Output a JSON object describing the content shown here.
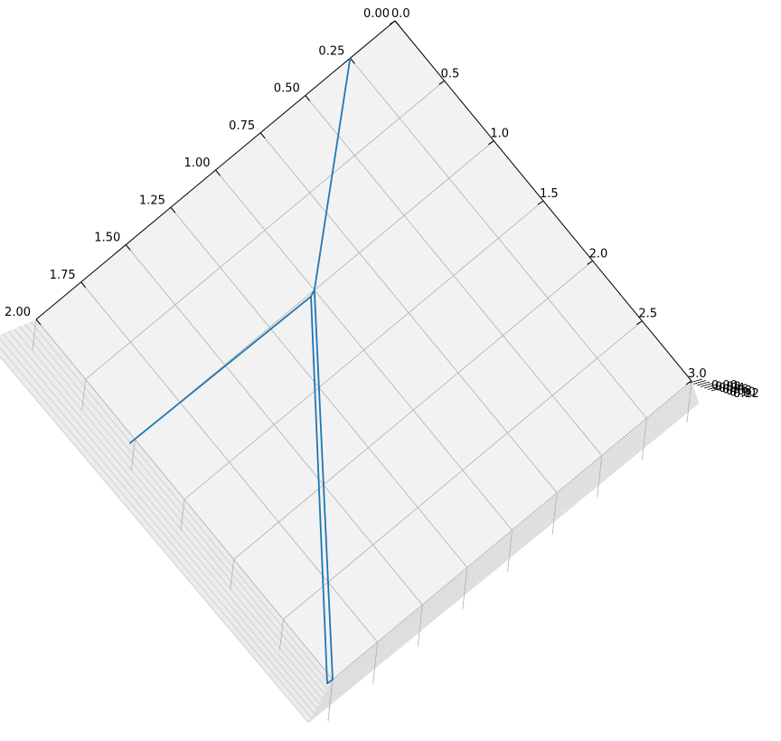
{
  "chart_data": {
    "type": "line",
    "projection": "3d",
    "title": "",
    "xlabel": "",
    "ylabel": "",
    "zlabel": "",
    "grid": true,
    "legend": "none",
    "axis_a": {
      "range": [
        0,
        2
      ],
      "ticks": [
        0.0,
        0.25,
        0.5,
        0.75,
        1.0,
        1.25,
        1.5,
        1.75,
        2.0
      ],
      "tick_labels": [
        "0.00",
        "0.25",
        "0.50",
        "0.75",
        "1.00",
        "1.25",
        "1.50",
        "1.75",
        "2.00"
      ]
    },
    "axis_b": {
      "range": [
        0,
        3
      ],
      "ticks": [
        0.0,
        0.5,
        1.0,
        1.5,
        2.0,
        2.5,
        3.0
      ],
      "tick_labels": [
        "0.0",
        "0.5",
        "1.0",
        "1.5",
        "2.0",
        "2.5",
        "3.0"
      ]
    },
    "axis_z": {
      "range": [
        0,
        0.12
      ],
      "tick_labels": [
        "0.00",
        "0.02",
        "0.04",
        "0.06",
        "0.08",
        "0.10",
        "0.12"
      ]
    },
    "series": [
      {
        "color": "#1f77b4",
        "points": [
          {
            "a": 0.25,
            "b": 0.0,
            "z": 0.0
          },
          {
            "a": 1.0,
            "b": 1.0,
            "z": 0.0
          },
          {
            "a": 1.0,
            "b": 1.02,
            "z": 0.02
          },
          {
            "a": 2.0,
            "b": 3.0,
            "z": 0.02
          },
          {
            "a": 2.0,
            "b": 3.0,
            "z": 0.0
          },
          {
            "a": 1.0,
            "b": 1.0,
            "z": 0.0
          },
          {
            "a": 1.0,
            "b": 1.02,
            "z": 0.02
          },
          {
            "a": 2.0,
            "b": 1.0,
            "z": 0.02
          }
        ]
      }
    ],
    "colors": {
      "pane": "#f2f2f2",
      "grid": "#b0b0b0",
      "axis": "#000000",
      "line": "#1f77b4"
    }
  }
}
